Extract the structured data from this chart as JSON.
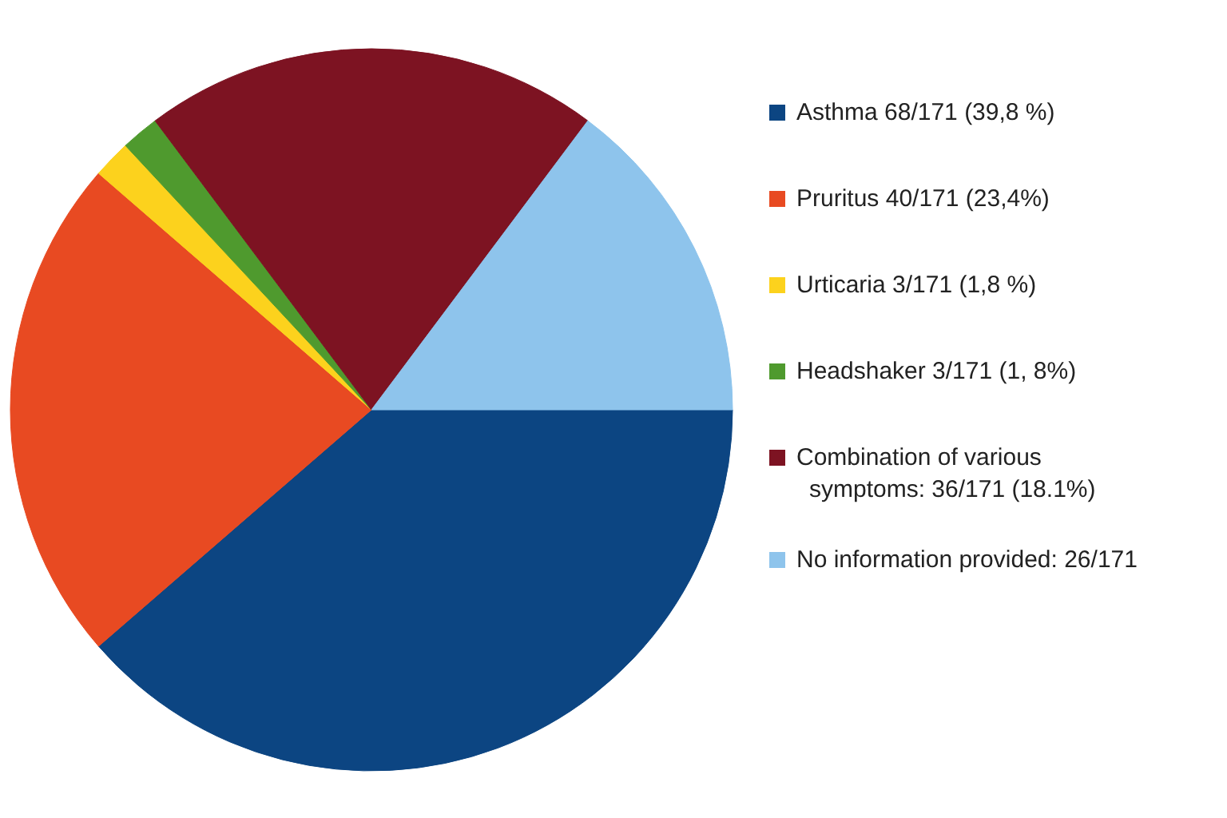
{
  "chart_data": {
    "type": "pie",
    "categories": [
      "Asthma 68/171 (39,8 %)",
      "Pruritus 40/171 (23,4%)",
      "Urticaria 3/171 (1,8 %)",
      "Headshaker 3/171 (1, 8%)",
      "Combination of various symptoms: 36/171 (18.1%)",
      "No information provided: 26/171"
    ],
    "values": [
      68,
      40,
      3,
      3,
      36,
      26
    ],
    "colors": [
      "#0c4582",
      "#e84a22",
      "#fcd21d",
      "#4f9a2e",
      "#7d1322",
      "#8ec4ec"
    ],
    "legend": "right"
  }
}
